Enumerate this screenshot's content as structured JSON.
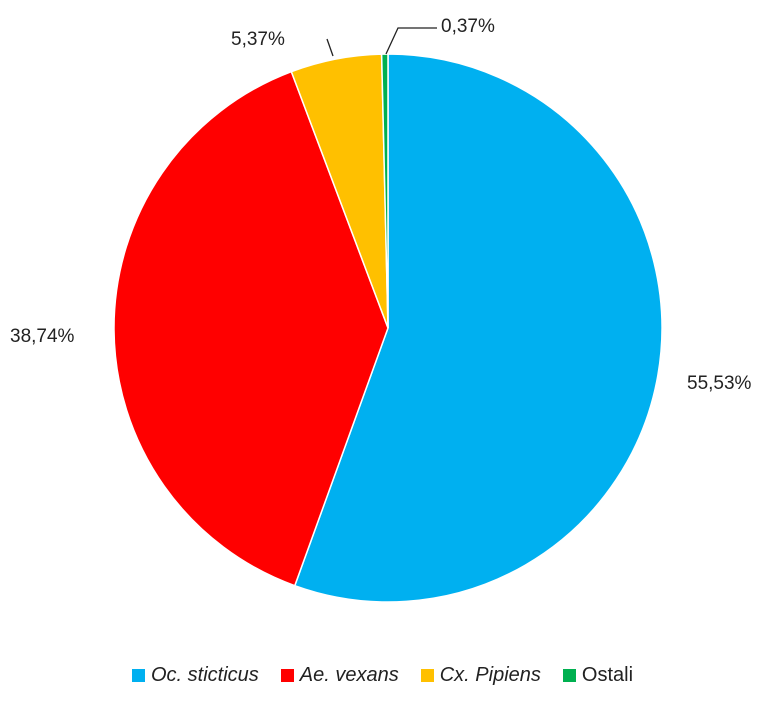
{
  "chart_data": {
    "type": "pie",
    "title": "",
    "start_angle_deg": 0,
    "direction": "clockwise",
    "slices": [
      {
        "name": "Oc. sticticus",
        "value": 55.53,
        "label": "55,53%",
        "color": "#00B0F0",
        "italic": true
      },
      {
        "name": "Ae. vexans",
        "value": 38.74,
        "label": "38,74%",
        "color": "#FF0000",
        "italic": true
      },
      {
        "name": "Cx. Pipiens",
        "value": 5.37,
        "label": "5,37%",
        "color": "#FFC000",
        "italic": true
      },
      {
        "name": "Ostali",
        "value": 0.37,
        "label": "0,37%",
        "color": "#00B050",
        "italic": false
      }
    ],
    "legend_position": "bottom"
  }
}
